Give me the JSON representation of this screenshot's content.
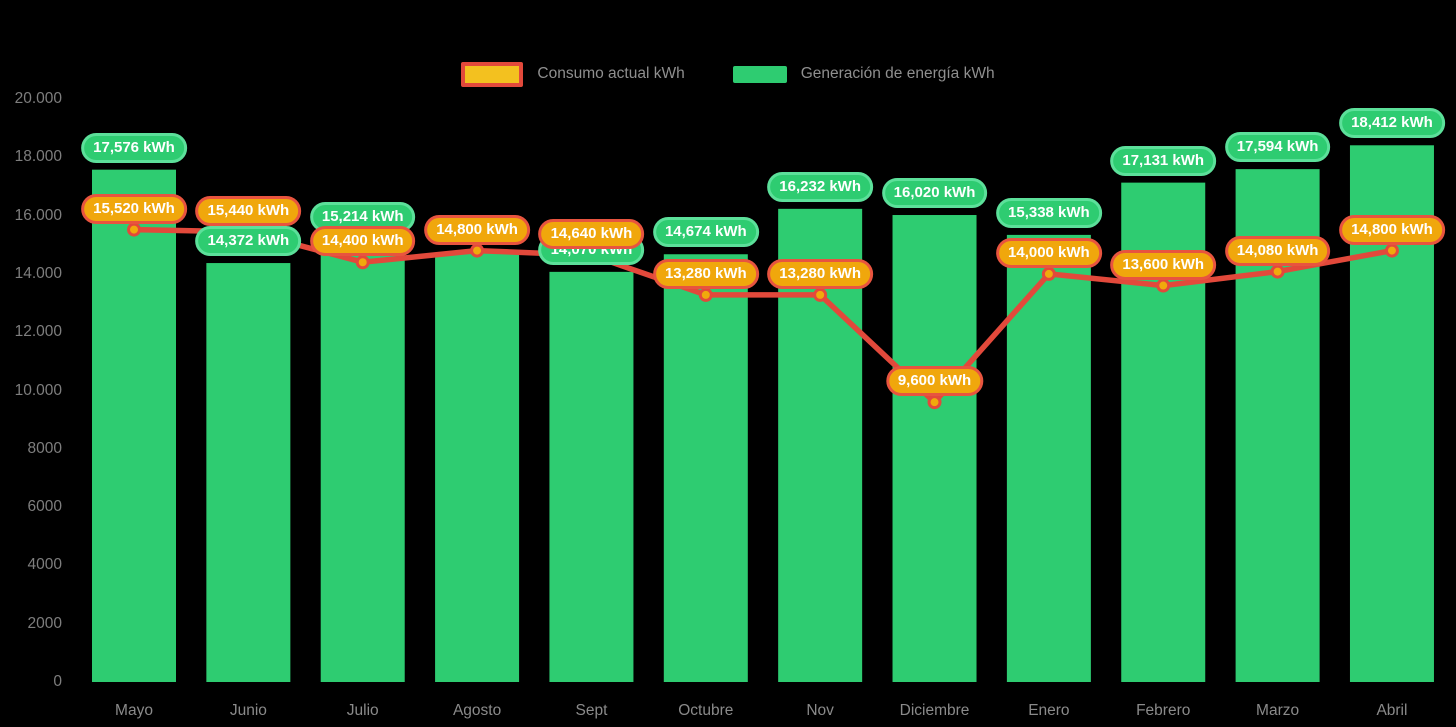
{
  "legend": {
    "consumption_label": "Consumo actual kWh",
    "generation_label": "Generación de energía kWh"
  },
  "colors": {
    "bar_green": "#2ecc71",
    "green_pill_border": "#5ce09a",
    "line_red": "#e2493b",
    "marker_orange": "#f0a90c",
    "orange_pill_fill": "#f0a70c",
    "orange_pill_border": "#e8543f",
    "legend_yellow_swatch": "#f3c11f",
    "axis_text_gray": "#7e7e7e",
    "background": "#000000"
  },
  "chart_data": {
    "type": "combo-bar-line",
    "title": "",
    "xlabel": "",
    "ylabel": "",
    "ylim": [
      0,
      20000
    ],
    "ytick_step": 2000,
    "ytick_labels": [
      "0",
      "2000",
      "4000",
      "6000",
      "8000",
      "10.000",
      "12.000",
      "14.000",
      "16.000",
      "18.000",
      "20.000"
    ],
    "grid": false,
    "legend_position": "top-center",
    "categories": [
      "Mayo",
      "Junio",
      "Julio",
      "Agosto",
      "Sept",
      "Octubre",
      "Nov",
      "Diciembre",
      "Enero",
      "Febrero",
      "Marzo",
      "Abril"
    ],
    "series": [
      {
        "name": "Generación de energía kWh",
        "type": "bar",
        "color": "#2ecc71",
        "values": [
          17576,
          14372,
          15214,
          14700,
          14070,
          14674,
          16232,
          16020,
          15338,
          17131,
          17594,
          18412
        ],
        "labels": [
          "17,576 kWh",
          "14,372 kWh",
          "15,214 kWh",
          null,
          "14,070 kWh",
          "14,674 kWh",
          "16,232 kWh",
          "16,020 kWh",
          "15,338 kWh",
          "17,131 kWh",
          "17,594 kWh",
          "18,412 kWh"
        ]
      },
      {
        "name": "Consumo actual kWh",
        "type": "line",
        "color": "#e2493b",
        "marker_color": "#f0a90c",
        "values": [
          15520,
          15440,
          14400,
          14800,
          14640,
          13280,
          13280,
          9600,
          14000,
          13600,
          14080,
          14800
        ],
        "labels": [
          "15,520 kWh",
          "15,440 kWh",
          "14,400 kWh",
          "14,800 kWh",
          "14,640 kWh",
          "13,280 kWh",
          "13,280 kWh",
          "9,600 kWh",
          "14,000 kWh",
          "13,600 kWh",
          "14,080 kWh",
          "14,800 kWh"
        ]
      }
    ]
  }
}
